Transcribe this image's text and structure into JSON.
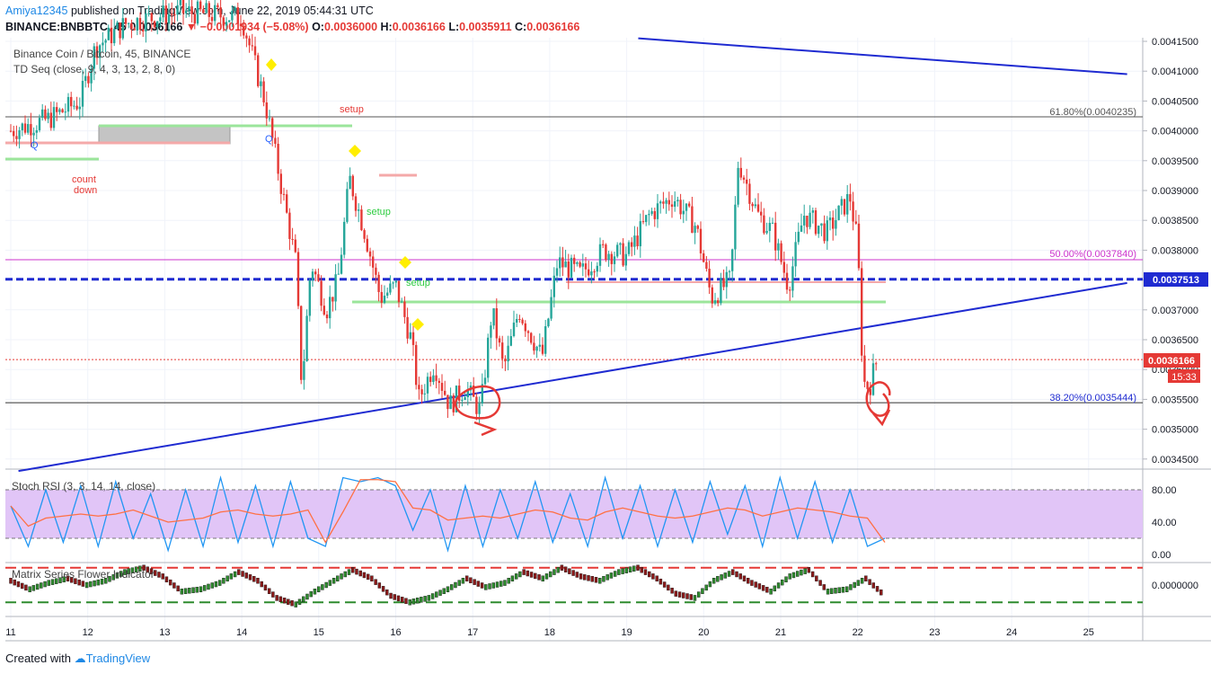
{
  "header": {
    "author": "Amiya12345",
    "published": " published on TradingView.com, June 22, 2019 05:44:31 UTC",
    "symbol": "BINANCE:BNBBTC, 45",
    "last": "0.0036166",
    "change": "▼ −0.0001934 (−5.08%)",
    "o_label": "O:",
    "o_value": "0.0036000",
    "h_label": "H:",
    "h_value": "0.0036166",
    "l_label": "L:",
    "l_value": "0.0035911",
    "c_label": "C:",
    "c_value": "0.0036166"
  },
  "legend": {
    "title": "Binance Coin / Bitcoin, 45, BINANCE",
    "indicator": "TD Seq (close, 9, 4, 3, 13, 2, 8, 0)",
    "stoch": "Stoch RSI (3, 3, 14, 14, close)",
    "matrix": "Matrix Series Flower Indicator"
  },
  "annotations": {
    "setup_red": "setup",
    "setup_green": "setup",
    "setup_green2": "setup",
    "count": "count",
    "down": "down",
    "q1": "Q",
    "q2": "Q"
  },
  "fib": {
    "f618": "61.80%(0.0040235)",
    "f500": "50.00%(0.0037840)",
    "f382": "38.20%(0.0035444)"
  },
  "price_labels": {
    "blue_level": "0.0037513",
    "last_price": "0.0036166",
    "countdown": "15:33"
  },
  "footer": {
    "created": "Created with",
    "brand": "TradingView"
  },
  "colors": {
    "up": "#26a69a",
    "down": "#e53935",
    "trendline": "#1f2bd1",
    "fib": "#cc33cc",
    "stoch_band": "#e1c5f7",
    "yellow": "#ffee00"
  },
  "chart_data": {
    "type": "candlestick",
    "title": "Binance Coin / Bitcoin, 45, BINANCE",
    "xlabel": "",
    "ylabel": "",
    "x_ticks": [
      "11",
      "12",
      "13",
      "14",
      "15",
      "16",
      "17",
      "18",
      "19",
      "20",
      "21",
      "22",
      "23",
      "24",
      "25"
    ],
    "y_ticks": [
      "0.0041500",
      "0.0041000",
      "0.0040500",
      "0.0040000",
      "0.0039500",
      "0.0039000",
      "0.0038500",
      "0.0038000",
      "0.0037500",
      "0.0037000",
      "0.0036500",
      "0.0036000",
      "0.0035500",
      "0.0035000",
      "0.0034500"
    ],
    "ylim": [
      0.00342,
      0.00416
    ],
    "price_path": [
      {
        "day": 11.0,
        "price": 0.004
      },
      {
        "day": 11.5,
        "price": 0.00402
      },
      {
        "day": 11.9,
        "price": 0.00405
      },
      {
        "day": 12.1,
        "price": 0.00414
      },
      {
        "day": 12.5,
        "price": 0.00418
      },
      {
        "day": 13.2,
        "price": 0.0042
      },
      {
        "day": 14.0,
        "price": 0.00419
      },
      {
        "day": 14.3,
        "price": 0.00405
      },
      {
        "day": 14.45,
        "price": 0.00395
      },
      {
        "day": 14.7,
        "price": 0.00378
      },
      {
        "day": 14.78,
        "price": 0.00357
      },
      {
        "day": 14.9,
        "price": 0.00378
      },
      {
        "day": 15.1,
        "price": 0.0037
      },
      {
        "day": 15.25,
        "price": 0.00375
      },
      {
        "day": 15.4,
        "price": 0.00392
      },
      {
        "day": 15.6,
        "price": 0.00383
      },
      {
        "day": 15.8,
        "price": 0.00372
      },
      {
        "day": 16.0,
        "price": 0.00374
      },
      {
        "day": 16.2,
        "price": 0.00365
      },
      {
        "day": 16.3,
        "price": 0.00355
      },
      {
        "day": 16.5,
        "price": 0.00361
      },
      {
        "day": 16.7,
        "price": 0.00354
      },
      {
        "day": 16.9,
        "price": 0.00357
      },
      {
        "day": 17.1,
        "price": 0.00353
      },
      {
        "day": 17.25,
        "price": 0.0037
      },
      {
        "day": 17.4,
        "price": 0.0036
      },
      {
        "day": 17.6,
        "price": 0.0037
      },
      {
        "day": 17.9,
        "price": 0.00362
      },
      {
        "day": 18.1,
        "price": 0.00378
      },
      {
        "day": 18.4,
        "price": 0.00376
      },
      {
        "day": 18.7,
        "price": 0.0038
      },
      {
        "day": 19.0,
        "price": 0.00379
      },
      {
        "day": 19.3,
        "price": 0.00386
      },
      {
        "day": 19.6,
        "price": 0.00389
      },
      {
        "day": 19.9,
        "price": 0.00384
      },
      {
        "day": 20.1,
        "price": 0.00372
      },
      {
        "day": 20.35,
        "price": 0.00375
      },
      {
        "day": 20.45,
        "price": 0.00395
      },
      {
        "day": 20.7,
        "price": 0.00386
      },
      {
        "day": 20.9,
        "price": 0.00383
      },
      {
        "day": 21.1,
        "price": 0.00374
      },
      {
        "day": 21.3,
        "price": 0.00386
      },
      {
        "day": 21.6,
        "price": 0.00383
      },
      {
        "day": 21.9,
        "price": 0.00389
      },
      {
        "day": 22.0,
        "price": 0.00381
      },
      {
        "day": 22.07,
        "price": 0.00358
      },
      {
        "day": 22.15,
        "price": 0.00357
      },
      {
        "day": 22.25,
        "price": 0.0036166
      }
    ],
    "horizontal_levels": [
      {
        "name": "61.80%",
        "value": 0.0040235
      },
      {
        "name": "50.00%",
        "value": 0.003784
      },
      {
        "name": "blue_level",
        "value": 0.0037513
      },
      {
        "name": "last_price",
        "value": 0.0036166
      },
      {
        "name": "38.20%",
        "value": 0.0035444
      }
    ],
    "trendlines": [
      {
        "from": {
          "day": 11.1,
          "price": 0.00343
        },
        "to": {
          "day": 25.5,
          "price": 0.003745
        }
      },
      {
        "from": {
          "day": 19.15,
          "price": 0.004155
        },
        "to": {
          "day": 25.5,
          "price": 0.004095
        }
      }
    ],
    "stoch_rsi": {
      "ylim": [
        0,
        100
      ],
      "y_ticks": [
        "80.00",
        "40.00",
        "0.00"
      ],
      "bands": [
        20,
        80
      ],
      "k": [
        60,
        10,
        80,
        15,
        85,
        10,
        90,
        20,
        75,
        5,
        80,
        10,
        95,
        15,
        85,
        10,
        90,
        20,
        10,
        95,
        90,
        95,
        85,
        30,
        80,
        5,
        85,
        10,
        80,
        20,
        90,
        15,
        75,
        10,
        95,
        20,
        85,
        10,
        80,
        15,
        90,
        25,
        85,
        10,
        95,
        20,
        90,
        15,
        80,
        10,
        20
      ]
    },
    "matrix_series": {
      "ylim": [
        -1,
        1
      ],
      "y_ticks": [
        "0.0000000"
      ],
      "upper": 0.8,
      "lower": -0.8,
      "values": [
        0.2,
        -0.2,
        0.1,
        0.3,
        0.0,
        0.2,
        0.6,
        0.8,
        0.4,
        -0.3,
        -0.2,
        0.1,
        0.6,
        0.2,
        -0.6,
        -0.9,
        -0.3,
        0.2,
        0.7,
        0.3,
        -0.5,
        -0.8,
        -0.6,
        -0.2,
        0.3,
        -0.1,
        0.1,
        0.6,
        0.3,
        0.8,
        0.4,
        0.2,
        0.6,
        0.8,
        0.3,
        -0.4,
        -0.6,
        0.2,
        0.6,
        0.1,
        -0.3,
        0.4,
        0.7,
        -0.3,
        -0.2,
        0.3,
        -0.5
      ]
    }
  }
}
